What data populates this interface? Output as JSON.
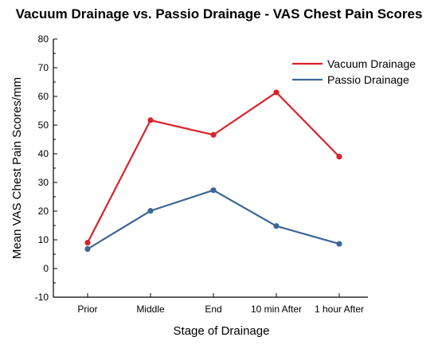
{
  "chart_data": {
    "type": "line",
    "title": "Vacuum Drainage vs. Passio Drainage - VAS Chest Pain Scores",
    "xlabel": "Stage of Drainage",
    "ylabel": "Mean VAS Chest Pain Scores/mm",
    "categories": [
      "Prior",
      "Middle",
      "End",
      "10 min After",
      "1 hour After"
    ],
    "ylim": [
      -10,
      80
    ],
    "yticks": [
      -10,
      0,
      10,
      20,
      30,
      40,
      50,
      60,
      70,
      80
    ],
    "grid": false,
    "legend_position": "top-right",
    "series": [
      {
        "name": "Vacuum Drainage",
        "color": "#d9232a",
        "values": [
          9,
          51.7,
          46.6,
          61.4,
          39
        ]
      },
      {
        "name": "Passio Drainage",
        "color": "#3e6797",
        "values": [
          6.8,
          20.1,
          27.3,
          14.8,
          8.6
        ]
      }
    ]
  }
}
